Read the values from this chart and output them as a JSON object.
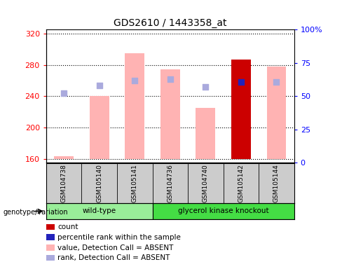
{
  "title": "GDS2610 / 1443358_at",
  "samples": [
    "GSM104738",
    "GSM105140",
    "GSM105141",
    "GSM104736",
    "GSM104740",
    "GSM105142",
    "GSM105144"
  ],
  "groups": [
    "wild-type",
    "wild-type",
    "wild-type",
    "glycerol kinase knockout",
    "glycerol kinase knockout",
    "glycerol kinase knockout",
    "glycerol kinase knockout"
  ],
  "bar_values": [
    163,
    240,
    295,
    274,
    225,
    287,
    278
  ],
  "bar_colors": [
    "#ffb3b3",
    "#ffb3b3",
    "#ffb3b3",
    "#ffb3b3",
    "#ffb3b3",
    "#cc0000",
    "#ffb3b3"
  ],
  "rank_dots": [
    244,
    254,
    260,
    262,
    252,
    258,
    258
  ],
  "rank_dot_colors": [
    "#aaaadd",
    "#aaaadd",
    "#aaaadd",
    "#aaaadd",
    "#aaaadd",
    "#2222bb",
    "#aaaadd"
  ],
  "ylim_left": [
    155,
    325
  ],
  "ylim_right": [
    0,
    100
  ],
  "yticks_left": [
    160,
    200,
    240,
    280,
    320
  ],
  "yticks_right": [
    0,
    25,
    50,
    75,
    100
  ],
  "ytick_labels_right": [
    "0",
    "25",
    "50",
    "75",
    "100%"
  ],
  "group_colors": {
    "wild-type": "#99ee99",
    "glycerol kinase knockout": "#44dd44"
  },
  "group_label": "genotype/variation",
  "plot_bg": "#ffffff",
  "legend_items": [
    {
      "label": "count",
      "color": "#cc0000"
    },
    {
      "label": "percentile rank within the sample",
      "color": "#2222bb"
    },
    {
      "label": "value, Detection Call = ABSENT",
      "color": "#ffb3b3"
    },
    {
      "label": "rank, Detection Call = ABSENT",
      "color": "#aaaadd"
    }
  ],
  "bar_bottom": 160,
  "dot_size": 30
}
